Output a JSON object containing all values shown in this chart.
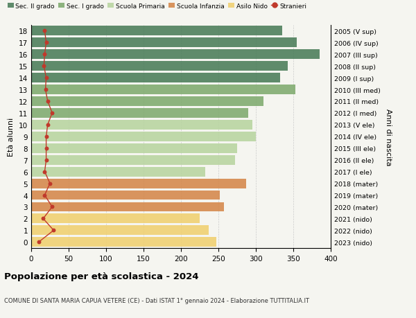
{
  "ages": [
    18,
    17,
    16,
    15,
    14,
    13,
    12,
    11,
    10,
    9,
    8,
    7,
    6,
    5,
    4,
    3,
    2,
    1,
    0
  ],
  "right_labels": [
    "2005 (V sup)",
    "2006 (IV sup)",
    "2007 (III sup)",
    "2008 (II sup)",
    "2009 (I sup)",
    "2010 (III med)",
    "2011 (II med)",
    "2012 (I med)",
    "2013 (V ele)",
    "2014 (IV ele)",
    "2015 (III ele)",
    "2016 (II ele)",
    "2017 (I ele)",
    "2018 (mater)",
    "2019 (mater)",
    "2020 (mater)",
    "2021 (nido)",
    "2022 (nido)",
    "2023 (nido)"
  ],
  "bar_values": [
    335,
    355,
    385,
    343,
    332,
    353,
    310,
    290,
    295,
    300,
    275,
    272,
    232,
    287,
    252,
    257,
    225,
    237,
    247
  ],
  "bar_colors": [
    "#4a7c59",
    "#4a7c59",
    "#4a7c59",
    "#4a7c59",
    "#4a7c59",
    "#7faa6e",
    "#7faa6e",
    "#7faa6e",
    "#b8d4a0",
    "#b8d4a0",
    "#b8d4a0",
    "#b8d4a0",
    "#b8d4a0",
    "#d4874a",
    "#d4874a",
    "#d4874a",
    "#f0d070",
    "#f0d070",
    "#f0d070"
  ],
  "stranieri_values": [
    18,
    20,
    18,
    17,
    20,
    19,
    22,
    28,
    22,
    20,
    20,
    20,
    18,
    25,
    18,
    28,
    16,
    30,
    10
  ],
  "legend_labels": [
    "Sec. II grado",
    "Sec. I grado",
    "Scuola Primaria",
    "Scuola Infanzia",
    "Asilo Nido",
    "Stranieri"
  ],
  "legend_colors": [
    "#4a7c59",
    "#7faa6e",
    "#b8d4a0",
    "#d4874a",
    "#f0d070",
    "#c0392b"
  ],
  "ylabel_left": "Età alunni",
  "ylabel_right": "Anni di nascita",
  "title": "Popolazione per età scolastica - 2024",
  "subtitle": "COMUNE DI SANTA MARIA CAPUA VETERE (CE) - Dati ISTAT 1° gennaio 2024 - Elaborazione TUTTITALIA.IT",
  "xlim": [
    0,
    400
  ],
  "xticks": [
    0,
    50,
    100,
    150,
    200,
    250,
    300,
    350,
    400
  ],
  "bg_color": "#f5f5f0",
  "bar_alpha": 0.88,
  "stranieri_color": "#c0392b",
  "grid_color": "#cccccc"
}
